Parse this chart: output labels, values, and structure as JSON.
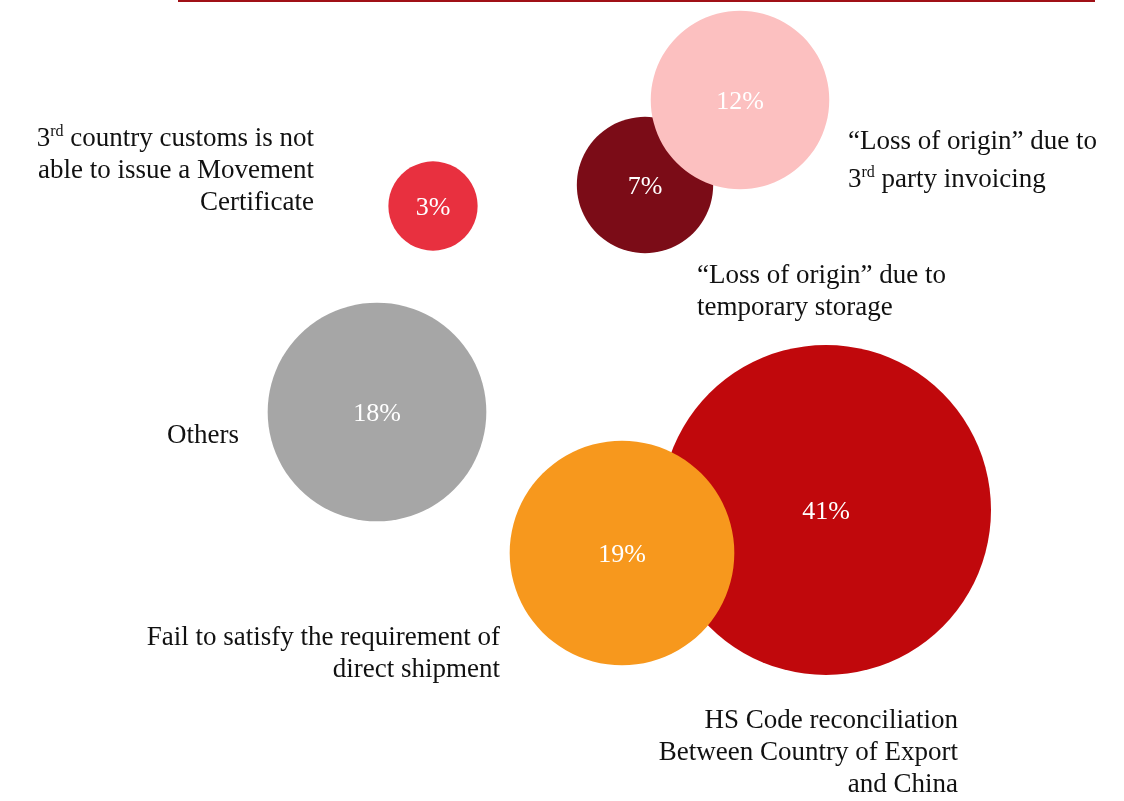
{
  "chart_data": {
    "type": "other",
    "categories": [
      "3$^{rd}$ country customs is not able to issue a Movement Certificate",
      "“Loss of origin” due to temporary storage",
      "“Loss of origin” due to 3$^{rd}$ party invoicing",
      "Others",
      "Fail to satisfy the requirement of direct shipment",
      "HS Code reconciliation Between Country of Export and China"
    ],
    "values": [
      3,
      7,
      12,
      18,
      19,
      41
    ],
    "value_labels": [
      "3%",
      "7%",
      "12%",
      "18%",
      "19%",
      "41%"
    ],
    "colors": [
      "#e8303f",
      "#7b0c17",
      "#fcc0c0",
      "#a6a6a6",
      "#f7981d",
      "#c0080c"
    ]
  }
}
